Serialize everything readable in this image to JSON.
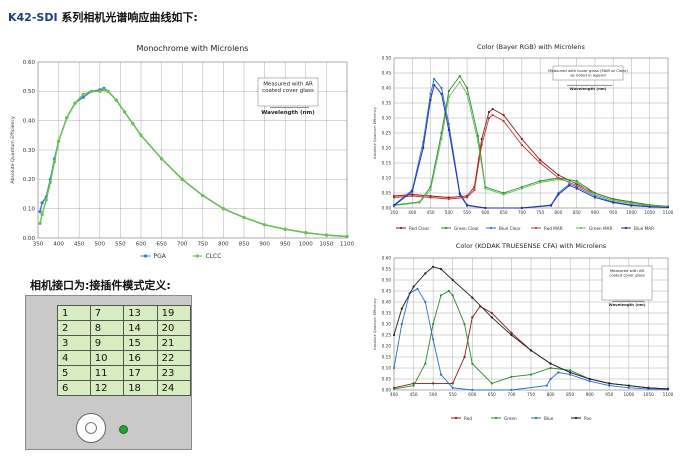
{
  "header": {
    "model": "K42-SDI",
    "text": " 系列相机光谱响应曲线如下:"
  },
  "interface_title": "相机接口为:接插件模式定义:",
  "pin_table": [
    [
      1,
      7,
      13,
      19
    ],
    [
      2,
      8,
      14,
      20
    ],
    [
      3,
      9,
      15,
      21
    ],
    [
      4,
      10,
      16,
      22
    ],
    [
      5,
      11,
      17,
      23
    ],
    [
      6,
      12,
      18,
      24
    ]
  ],
  "chart_data": [
    {
      "type": "line",
      "title": "Monochrome with Microlens",
      "xlabel": "Wavelength (nm)",
      "ylabel": "Absolute Quantum Efficiency",
      "annotation": [
        "Measured with AR",
        "coated cover glass"
      ],
      "xlim": [
        350,
        1100
      ],
      "ylim": [
        0,
        0.6
      ],
      "xticks": [
        350,
        400,
        450,
        500,
        550,
        600,
        650,
        700,
        750,
        800,
        850,
        900,
        950,
        1000,
        1050,
        1100
      ],
      "yticks": [
        0,
        0.1,
        0.2,
        0.3,
        0.4,
        0.5,
        0.6
      ],
      "ytick_labels": [
        "0.00",
        "0.10",
        "0.20",
        "0.30",
        "0.40",
        "0.50",
        "0.60"
      ],
      "legend_position": "bottom",
      "series": [
        {
          "name": "PGA",
          "color": "#3a7fd5",
          "x": [
            355,
            360,
            370,
            380,
            390,
            400,
            420,
            440,
            460,
            480,
            500,
            510,
            520,
            540,
            560,
            580,
            600,
            650,
            700,
            750,
            800,
            850,
            900,
            950,
            1000,
            1050,
            1100
          ],
          "values": [
            0.09,
            0.12,
            0.14,
            0.2,
            0.27,
            0.33,
            0.41,
            0.46,
            0.48,
            0.5,
            0.505,
            0.51,
            0.5,
            0.47,
            0.43,
            0.39,
            0.35,
            0.27,
            0.2,
            0.145,
            0.1,
            0.07,
            0.045,
            0.03,
            0.018,
            0.01,
            0.005
          ]
        },
        {
          "name": "CLCC",
          "color": "#6cc24a",
          "x": [
            355,
            360,
            370,
            380,
            390,
            400,
            420,
            440,
            460,
            480,
            500,
            510,
            520,
            540,
            560,
            580,
            600,
            650,
            700,
            750,
            800,
            850,
            900,
            950,
            1000,
            1050,
            1100
          ],
          "values": [
            0.05,
            0.08,
            0.13,
            0.19,
            0.26,
            0.33,
            0.41,
            0.46,
            0.49,
            0.5,
            0.5,
            0.505,
            0.5,
            0.47,
            0.43,
            0.39,
            0.35,
            0.27,
            0.2,
            0.145,
            0.1,
            0.07,
            0.045,
            0.03,
            0.018,
            0.01,
            0.005
          ]
        }
      ]
    },
    {
      "type": "line",
      "title": "Color (Bayer RGB) with Microlens",
      "xlabel": "Wavelength (nm)",
      "ylabel": "Absolute Quantum Efficiency",
      "annotation": [
        "Measured with cover glass (MAR or Clear)",
        "as noted in legend"
      ],
      "xlim": [
        350,
        1100
      ],
      "ylim": [
        0,
        0.5
      ],
      "xticks": [
        350,
        400,
        450,
        500,
        550,
        600,
        650,
        700,
        750,
        800,
        850,
        900,
        950,
        1000,
        1050,
        1100
      ],
      "yticks": [
        0,
        0.05,
        0.1,
        0.15,
        0.2,
        0.25,
        0.3,
        0.35,
        0.4,
        0.45,
        0.5
      ],
      "ytick_labels": [
        "0.00",
        "0.05",
        "0.10",
        "0.15",
        "0.20",
        "0.25",
        "0.30",
        "0.35",
        "0.40",
        "0.45",
        "0.50"
      ],
      "legend_position": "bottom",
      "series": [
        {
          "name": "Red Clear",
          "color": "#8b1a1a",
          "x": [
            350,
            400,
            450,
            500,
            550,
            570,
            590,
            610,
            620,
            650,
            700,
            750,
            800,
            850,
            900,
            950,
            1000,
            1050,
            1100
          ],
          "values": [
            0.04,
            0.045,
            0.04,
            0.035,
            0.04,
            0.07,
            0.23,
            0.32,
            0.33,
            0.31,
            0.23,
            0.16,
            0.11,
            0.08,
            0.05,
            0.03,
            0.02,
            0.01,
            0.005
          ]
        },
        {
          "name": "Green Clear",
          "color": "#2e8b2e",
          "x": [
            350,
            420,
            450,
            480,
            500,
            530,
            550,
            580,
            600,
            650,
            700,
            750,
            800,
            850,
            900,
            950,
            1000,
            1050,
            1100
          ],
          "values": [
            0.01,
            0.02,
            0.07,
            0.25,
            0.39,
            0.44,
            0.4,
            0.24,
            0.07,
            0.05,
            0.07,
            0.09,
            0.1,
            0.09,
            0.05,
            0.03,
            0.02,
            0.01,
            0.005
          ]
        },
        {
          "name": "Blue Clear",
          "color": "#2b6cd6",
          "x": [
            350,
            400,
            430,
            450,
            460,
            480,
            500,
            530,
            550,
            600,
            700,
            780,
            800,
            830,
            850,
            900,
            950,
            1000,
            1050,
            1100
          ],
          "values": [
            0.01,
            0.06,
            0.22,
            0.38,
            0.43,
            0.4,
            0.28,
            0.05,
            0.01,
            0.0,
            0.0,
            0.01,
            0.05,
            0.08,
            0.07,
            0.04,
            0.02,
            0.01,
            0.005,
            0.002
          ]
        },
        {
          "name": "Red MAR",
          "color": "#c0392b",
          "x": [
            350,
            400,
            450,
            500,
            550,
            570,
            590,
            610,
            620,
            650,
            700,
            750,
            800,
            850,
            900,
            950,
            1000,
            1050,
            1100
          ],
          "values": [
            0.035,
            0.04,
            0.035,
            0.03,
            0.035,
            0.06,
            0.21,
            0.3,
            0.31,
            0.29,
            0.21,
            0.15,
            0.1,
            0.075,
            0.045,
            0.025,
            0.015,
            0.008,
            0.004
          ]
        },
        {
          "name": "Green MAR",
          "color": "#5cc25c",
          "x": [
            350,
            420,
            450,
            480,
            500,
            530,
            550,
            580,
            600,
            650,
            700,
            750,
            800,
            850,
            900,
            950,
            1000,
            1050,
            1100
          ],
          "values": [
            0.008,
            0.018,
            0.06,
            0.23,
            0.37,
            0.42,
            0.38,
            0.22,
            0.065,
            0.045,
            0.065,
            0.085,
            0.095,
            0.085,
            0.045,
            0.025,
            0.015,
            0.008,
            0.004
          ]
        },
        {
          "name": "Blue MAR",
          "color": "#1c2fa8",
          "x": [
            350,
            400,
            430,
            450,
            460,
            480,
            500,
            530,
            550,
            600,
            700,
            780,
            800,
            830,
            850,
            900,
            950,
            1000,
            1050,
            1100
          ],
          "values": [
            0.008,
            0.055,
            0.2,
            0.36,
            0.41,
            0.38,
            0.26,
            0.045,
            0.008,
            0.0,
            0.0,
            0.008,
            0.045,
            0.075,
            0.065,
            0.035,
            0.018,
            0.008,
            0.004,
            0.002
          ]
        }
      ]
    },
    {
      "type": "line",
      "title": "Color (KODAK TRUESENSE CFA) with Microlens",
      "xlabel": "Wavelength (nm)",
      "ylabel": "Absolute Quantum Efficiency",
      "annotation": [
        "Measured with AR",
        "coated cover glass"
      ],
      "xlim": [
        400,
        1100
      ],
      "ylim": [
        0,
        0.6
      ],
      "xticks": [
        400,
        450,
        500,
        550,
        600,
        650,
        700,
        750,
        800,
        850,
        900,
        950,
        1000,
        1050,
        1100
      ],
      "yticks": [
        0,
        0.05,
        0.1,
        0.15,
        0.2,
        0.25,
        0.3,
        0.35,
        0.4,
        0.45,
        0.5,
        0.55,
        0.6
      ],
      "ytick_labels": [
        "0.00",
        "0.05",
        "0.10",
        "0.15",
        "0.20",
        "0.25",
        "0.30",
        "0.35",
        "0.40",
        "0.45",
        "0.50",
        "0.55",
        "0.60"
      ],
      "legend_position": "bottom",
      "series": [
        {
          "name": "Red",
          "color": "#8b1a1a",
          "x": [
            400,
            450,
            500,
            550,
            580,
            600,
            620,
            650,
            700,
            750,
            800,
            850,
            900,
            950,
            1000,
            1050,
            1100
          ],
          "values": [
            0.01,
            0.03,
            0.03,
            0.03,
            0.15,
            0.33,
            0.38,
            0.35,
            0.26,
            0.18,
            0.12,
            0.08,
            0.05,
            0.03,
            0.02,
            0.01,
            0.005
          ]
        },
        {
          "name": "Green",
          "color": "#2e8b2e",
          "x": [
            400,
            450,
            480,
            500,
            520,
            540,
            550,
            580,
            600,
            650,
            700,
            750,
            800,
            850,
            900,
            950,
            1000,
            1050,
            1100
          ],
          "values": [
            0.005,
            0.02,
            0.12,
            0.3,
            0.43,
            0.45,
            0.43,
            0.3,
            0.12,
            0.03,
            0.06,
            0.07,
            0.1,
            0.09,
            0.05,
            0.03,
            0.02,
            0.01,
            0.005
          ]
        },
        {
          "name": "Blue",
          "color": "#2b6cd6",
          "x": [
            400,
            420,
            440,
            460,
            480,
            500,
            520,
            550,
            600,
            700,
            790,
            800,
            820,
            850,
            900,
            950,
            1000,
            1050,
            1100
          ],
          "values": [
            0.1,
            0.3,
            0.44,
            0.46,
            0.4,
            0.23,
            0.07,
            0.01,
            0.0,
            0.0,
            0.02,
            0.05,
            0.08,
            0.07,
            0.04,
            0.02,
            0.01,
            0.005,
            0.002
          ]
        },
        {
          "name": "Pan",
          "color": "#222222",
          "x": [
            400,
            420,
            450,
            480,
            500,
            520,
            550,
            600,
            650,
            700,
            750,
            800,
            850,
            900,
            950,
            1000,
            1050,
            1100
          ],
          "values": [
            0.25,
            0.37,
            0.47,
            0.53,
            0.56,
            0.55,
            0.5,
            0.42,
            0.33,
            0.25,
            0.18,
            0.12,
            0.08,
            0.05,
            0.03,
            0.02,
            0.01,
            0.005
          ]
        }
      ]
    }
  ]
}
